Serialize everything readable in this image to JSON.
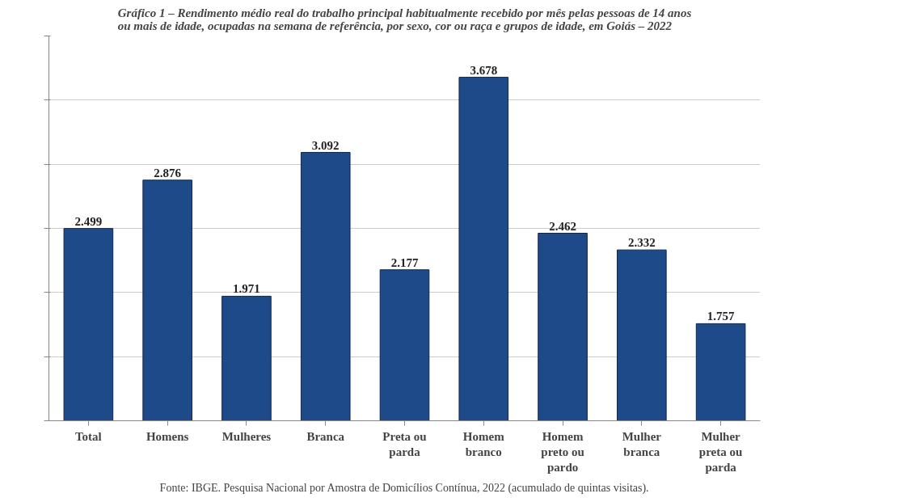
{
  "chart_data": {
    "type": "bar",
    "title": "Gráfico 1 – Rendimento médio real do trabalho principal habitualmente recebido por mês pelas pessoas de 14 anos ou mais de idade, ocupadas na semana de referência, por sexo, cor ou raça e grupos de idade, em Goiás – 2022",
    "categories": [
      "Total",
      "Homens",
      "Mulheres",
      "Branca",
      "Preta ou parda",
      "Homem branco",
      "Homem preto ou pardo",
      "Mulher branca",
      "Mulher preta ou parda"
    ],
    "values": [
      2499,
      2876,
      1971,
      3092,
      2177,
      3678,
      2462,
      2332,
      1757
    ],
    "value_labels": [
      "2.499",
      "2.876",
      "1.971",
      "3.092",
      "2.177",
      "3.678",
      "2.462",
      "2.332",
      "1.757"
    ],
    "color": "#1f4a8a",
    "ylim": [
      1000,
      4000
    ],
    "yticks": [
      {
        "value": 1000,
        "label": null
      },
      {
        "value": 1500,
        "label": null
      },
      {
        "value": 2000,
        "label": null
      },
      {
        "value": 2500,
        "label": null
      },
      {
        "value": 3000,
        "label": null
      },
      {
        "value": 3500,
        "label": null
      },
      {
        "value": 4000,
        "label": null
      }
    ],
    "grid": "y",
    "tick_labels": "x",
    "annotations": [
      "Fonte: IBGE. Pesquisa Nacional por Amostra de Domicílios Contínua, 2022 (acumulado de quintas visitas)."
    ]
  }
}
